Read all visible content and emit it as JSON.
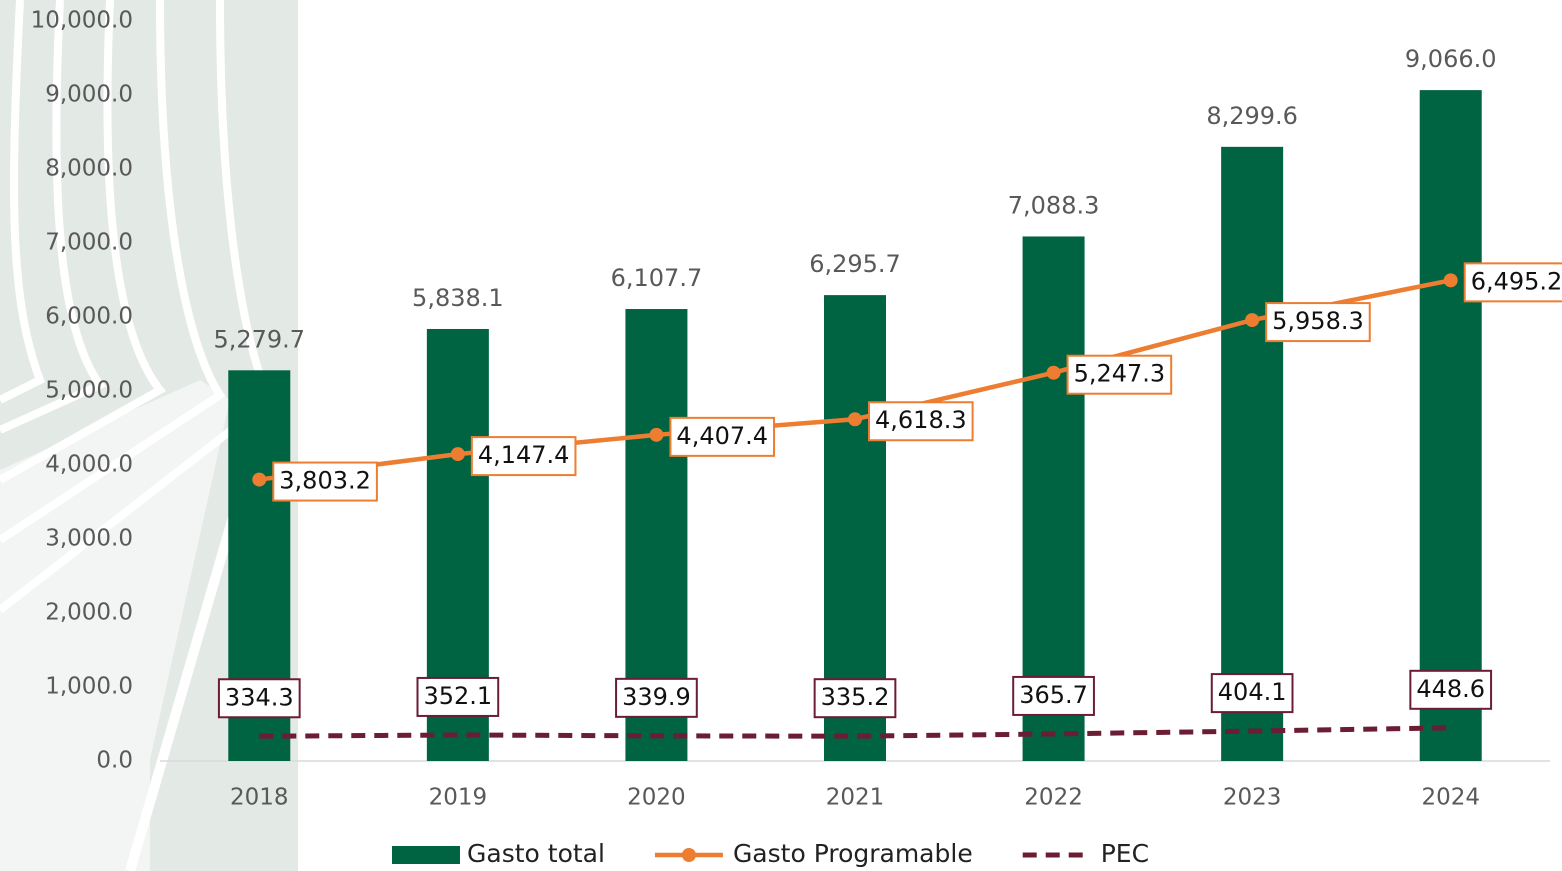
{
  "chart_data": {
    "type": "bar",
    "categories": [
      "2018",
      "2019",
      "2020",
      "2021",
      "2022",
      "2023",
      "2024"
    ],
    "series": [
      {
        "name": "Gasto total",
        "type": "bar",
        "color": "#006341",
        "values": [
          5279.7,
          5838.1,
          6107.7,
          6295.7,
          7088.3,
          8299.6,
          9066.0
        ],
        "value_labels": [
          "5,279.7",
          "5,838.1",
          "6,107.7",
          "6,295.7",
          "7,088.3",
          "8,299.6",
          "9,066.0"
        ]
      },
      {
        "name": "Gasto Programable",
        "type": "line",
        "color": "#ed7d31",
        "dashed": false,
        "values": [
          3803.2,
          4147.4,
          4407.4,
          4618.3,
          5247.3,
          5958.3,
          6495.2
        ],
        "value_labels": [
          "3,803.2",
          "4,147.4",
          "4,407.4",
          "4,618.3",
          "5,247.3",
          "5,958.3",
          "6,495.2"
        ]
      },
      {
        "name": "PEC",
        "type": "line",
        "color": "#6b1d33",
        "dashed": true,
        "values": [
          334.3,
          352.1,
          339.9,
          335.2,
          365.7,
          404.1,
          448.6
        ],
        "value_labels": [
          "334.3",
          "352.1",
          "339.9",
          "335.2",
          "365.7",
          "404.1",
          "448.6"
        ]
      }
    ],
    "ylim": [
      0,
      10000
    ],
    "yticks": [
      {
        "value": 0,
        "label": "0.0"
      },
      {
        "value": 1000,
        "label": "1,000.0"
      },
      {
        "value": 2000,
        "label": "2,000.0"
      },
      {
        "value": 3000,
        "label": "3,000.0"
      },
      {
        "value": 4000,
        "label": "4,000.0"
      },
      {
        "value": 5000,
        "label": "5,000.0"
      },
      {
        "value": 6000,
        "label": "6,000.0"
      },
      {
        "value": 7000,
        "label": "7,000.0"
      },
      {
        "value": 8000,
        "label": "8,000.0"
      },
      {
        "value": 9000,
        "label": "9,000.0"
      },
      {
        "value": 10000,
        "label": "10,000.0"
      }
    ],
    "legend": "bottom"
  }
}
